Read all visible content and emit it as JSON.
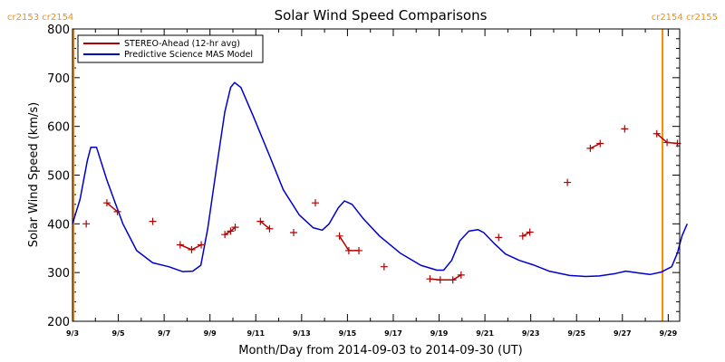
{
  "chart_data": {
    "type": "line",
    "title": "Solar Wind Speed Comparisons",
    "xlabel": "Month/Day from 2014-09-03 to 2014-09-30 (UT)",
    "ylabel": "Solar Wind Speed (km/s)",
    "xlim": [
      0,
      26.5
    ],
    "ylim": [
      200,
      800
    ],
    "x_unit": "days since 2014-09-03",
    "x_ticks": [
      {
        "day": 0,
        "label": "9/3"
      },
      {
        "day": 2,
        "label": "9/5"
      },
      {
        "day": 4,
        "label": "9/7"
      },
      {
        "day": 6,
        "label": "9/9"
      },
      {
        "day": 8,
        "label": "9/11"
      },
      {
        "day": 10,
        "label": "9/13"
      },
      {
        "day": 12,
        "label": "9/15"
      },
      {
        "day": 14,
        "label": "9/17"
      },
      {
        "day": 16,
        "label": "9/19"
      },
      {
        "day": 18,
        "label": "9/21"
      },
      {
        "day": 20,
        "label": "9/23"
      },
      {
        "day": 22,
        "label": "9/25"
      },
      {
        "day": 24,
        "label": "9/27"
      },
      {
        "day": 26,
        "label": "9/29"
      }
    ],
    "y_ticks": [
      200,
      300,
      400,
      500,
      600,
      700,
      800
    ],
    "carrington": {
      "left_label": "cr2153 cr2154",
      "right_label": "cr2154 cr2155",
      "boundary_days": [
        0.05,
        25.75
      ],
      "color": "#ff8c00"
    },
    "legend_position": "top-left",
    "series": [
      {
        "name": "STEREO-Ahead (12-hr avg)",
        "color": "#b30000",
        "style": "markers+segments",
        "segments": [
          [
            [
              0.6,
              400
            ]
          ],
          [
            [
              1.5,
              443
            ],
            [
              1.96,
              425
            ]
          ],
          [
            [
              3.5,
              405
            ]
          ],
          [
            [
              4.7,
              357
            ],
            [
              5.2,
              347
            ],
            [
              5.62,
              357
            ]
          ],
          [
            [
              6.65,
              378
            ],
            [
              6.9,
              385
            ],
            [
              7.1,
              393
            ]
          ],
          [
            [
              8.2,
              405
            ],
            [
              8.6,
              390
            ]
          ],
          [
            [
              9.65,
              382
            ]
          ],
          [
            [
              10.6,
              443
            ]
          ],
          [
            [
              11.65,
              375
            ],
            [
              12.06,
              345
            ],
            [
              12.5,
              345
            ]
          ],
          [
            [
              13.6,
              312
            ]
          ],
          [
            [
              15.6,
              287
            ],
            [
              16.05,
              285
            ],
            [
              16.6,
              285
            ],
            [
              16.96,
              295
            ]
          ],
          [
            [
              18.6,
              372
            ]
          ],
          [
            [
              19.65,
              375
            ],
            [
              19.96,
              383
            ]
          ],
          [
            [
              21.6,
              485
            ]
          ],
          [
            [
              22.6,
              555
            ],
            [
              23.03,
              565
            ]
          ],
          [
            [
              24.1,
              595
            ]
          ],
          [
            [
              25.5,
              585
            ],
            [
              25.95,
              567
            ],
            [
              26.4,
              565
            ]
          ]
        ]
      },
      {
        "name": "Predictive Science MAS Model",
        "color": "#0000cc",
        "style": "line",
        "points": [
          [
            0,
            400
          ],
          [
            0.33,
            450
          ],
          [
            0.65,
            530
          ],
          [
            0.8,
            557
          ],
          [
            1.05,
            557
          ],
          [
            1.5,
            490
          ],
          [
            2.2,
            400
          ],
          [
            2.8,
            345
          ],
          [
            3.5,
            320
          ],
          [
            4.2,
            312
          ],
          [
            4.8,
            302
          ],
          [
            5.25,
            303
          ],
          [
            5.6,
            315
          ],
          [
            5.9,
            390
          ],
          [
            6.3,
            520
          ],
          [
            6.65,
            630
          ],
          [
            6.9,
            680
          ],
          [
            7.07,
            690
          ],
          [
            7.35,
            680
          ],
          [
            7.9,
            620
          ],
          [
            8.6,
            540
          ],
          [
            9.2,
            470
          ],
          [
            9.9,
            418
          ],
          [
            10.5,
            392
          ],
          [
            10.9,
            387
          ],
          [
            11.2,
            400
          ],
          [
            11.6,
            433
          ],
          [
            11.87,
            447
          ],
          [
            12.2,
            440
          ],
          [
            12.7,
            410
          ],
          [
            13.4,
            375
          ],
          [
            14.3,
            340
          ],
          [
            15.2,
            315
          ],
          [
            15.9,
            305
          ],
          [
            16.2,
            305
          ],
          [
            16.55,
            325
          ],
          [
            16.9,
            365
          ],
          [
            17.3,
            385
          ],
          [
            17.7,
            388
          ],
          [
            17.95,
            382
          ],
          [
            18.4,
            360
          ],
          [
            18.9,
            338
          ],
          [
            19.5,
            325
          ],
          [
            20.1,
            316
          ],
          [
            20.8,
            303
          ],
          [
            21.7,
            294
          ],
          [
            22.4,
            292
          ],
          [
            23.0,
            293
          ],
          [
            23.7,
            298
          ],
          [
            24.15,
            303
          ],
          [
            24.6,
            300
          ],
          [
            25.2,
            296
          ],
          [
            25.7,
            301
          ],
          [
            26.15,
            312
          ],
          [
            26.4,
            340
          ],
          [
            26.6,
            375
          ],
          [
            26.83,
            400
          ]
        ]
      }
    ]
  }
}
